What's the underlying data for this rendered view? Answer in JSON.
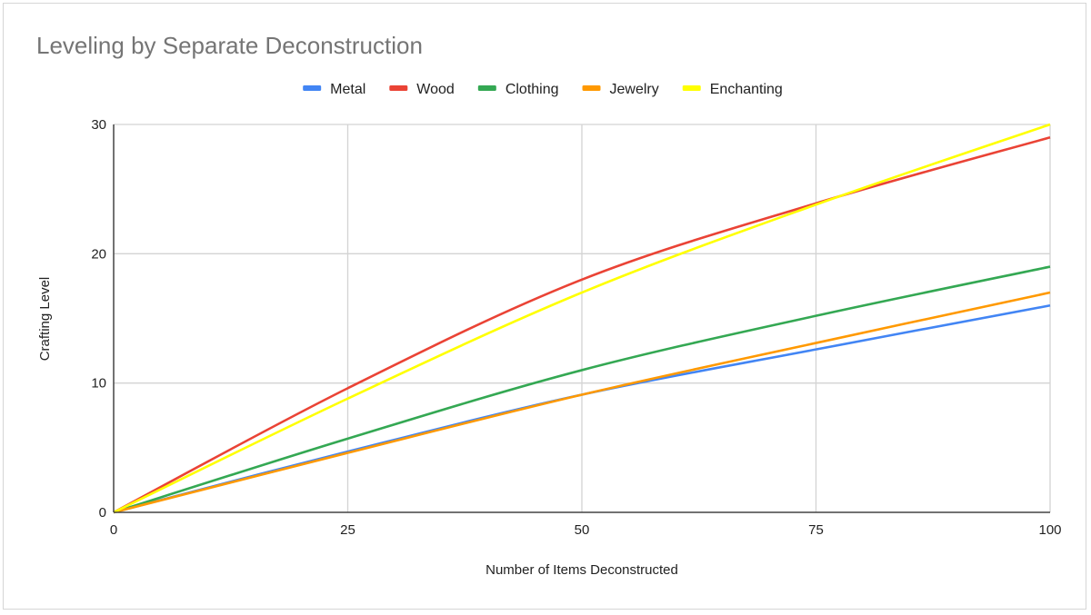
{
  "chart_data": {
    "type": "line",
    "title": "Leveling by Separate Deconstruction",
    "xlabel": "Number of Items Deconstructed",
    "ylabel": "Crafting Level",
    "x": [
      0,
      25,
      50,
      75,
      100
    ],
    "xlim": [
      0,
      100
    ],
    "ylim": [
      0,
      30
    ],
    "xticks": [
      0,
      25,
      50,
      75,
      100
    ],
    "yticks": [
      0,
      10,
      20,
      30
    ],
    "grid": true,
    "legend_position": "top",
    "series": [
      {
        "name": "Metal",
        "color": "#4285f4",
        "values": [
          0,
          4.7,
          9.1,
          12.6,
          16
        ]
      },
      {
        "name": "Wood",
        "color": "#ea4335",
        "values": [
          0,
          9.6,
          18,
          23.9,
          29
        ]
      },
      {
        "name": "Clothing",
        "color": "#34a853",
        "values": [
          0,
          5.7,
          11,
          15.2,
          19
        ]
      },
      {
        "name": "Jewelry",
        "color": "#ff9900",
        "values": [
          0,
          4.6,
          9.1,
          13.1,
          17
        ]
      },
      {
        "name": "Enchanting",
        "color": "#ffff00",
        "values": [
          0,
          8.8,
          17,
          23.8,
          30
        ]
      }
    ]
  }
}
